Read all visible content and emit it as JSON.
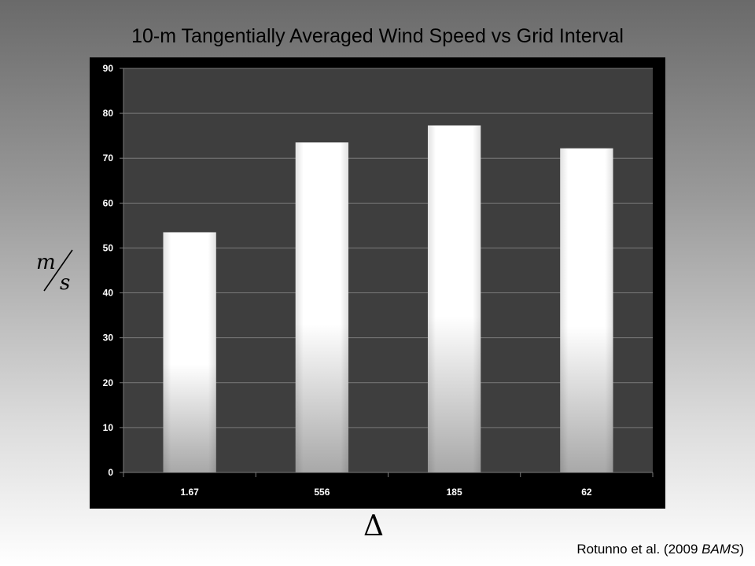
{
  "slide": {
    "title": "10-m Tangentially Averaged Wind Speed vs Grid Interval",
    "citation_before": "Rotunno et al. (2009 ",
    "citation_journal": "BAMS",
    "citation_after": ")"
  },
  "chart_data": {
    "type": "bar",
    "categories": [
      "1.67",
      "556",
      "185",
      "62"
    ],
    "values": [
      53.5,
      73.5,
      77.3,
      72.2
    ],
    "title": "10-m Tangentially Averaged Wind Speed vs Grid Interval",
    "xlabel": "Δ",
    "ylabel_numerator": "m",
    "ylabel_denominator": "s",
    "ylim": [
      0,
      90
    ],
    "yticks": [
      "0",
      "10",
      "20",
      "30",
      "40",
      "50",
      "60",
      "70",
      "80",
      "90"
    ],
    "grid": true,
    "legend": "none",
    "colors": {
      "plot_background": "#3e3e3e",
      "frame_background": "#000000",
      "gridline": "#7a7a7a",
      "bar_top": "#ffffff",
      "bar_bottom": "#a8a8a8",
      "tick_text": "#ffffff"
    }
  }
}
